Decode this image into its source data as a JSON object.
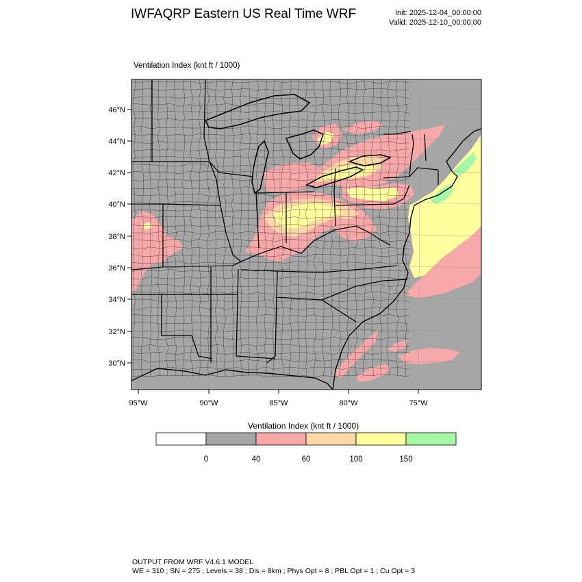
{
  "header": {
    "title": "IWFAQRP Eastern US Real Time WRF",
    "init": "Init: 2025-12-04_00:00:00",
    "valid": "Valid: 2025-12-10_00:00:00"
  },
  "plot": {
    "field_label": "Ventilation Index   (knt ft / 1000)",
    "lat_labels": [
      "46°N",
      "44°N",
      "42°N",
      "40°N",
      "38°N",
      "36°N",
      "34°N",
      "32°N",
      "30°N"
    ],
    "lon_labels": [
      "95°W",
      "90°W",
      "85°W",
      "80°W",
      "75°W"
    ]
  },
  "colorbar": {
    "title": "Ventilation Index  (knt ft / 1000)",
    "tick_labels": [
      "0",
      "40",
      "60",
      "100",
      "150"
    ],
    "colors": [
      "#ffffff",
      "#a6a6a6",
      "#f7a8a8",
      "#fbd8a5",
      "#ffff9e",
      "#a6f7a6"
    ]
  },
  "colors": {
    "land_gray": "#a6a6a6",
    "pink": "#f7a8a8",
    "orange": "#fbd8a5",
    "yellow": "#ffff9e",
    "green": "#a6f7a6"
  },
  "footer": {
    "line1": "OUTPUT FROM WRF V4.6.1 MODEL",
    "line2": "WE = 310 ; SN = 275 ; Levels = 38 ; Dis = 8km ; Phys Opt = 8 ; PBL Opt = 1 ; Cu Opt = 3"
  }
}
